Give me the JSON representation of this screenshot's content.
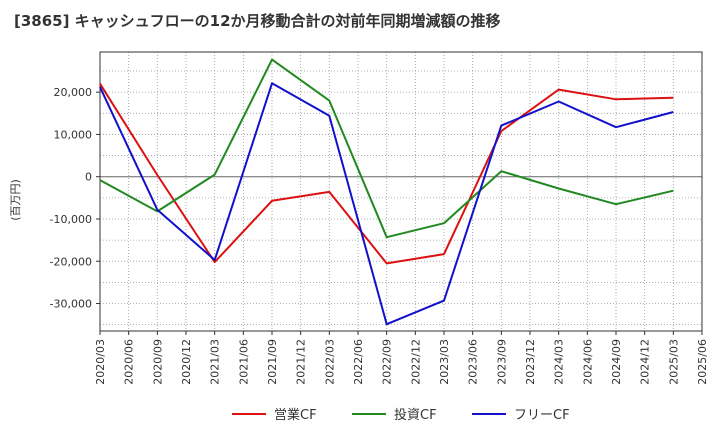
{
  "chart_data": {
    "type": "line",
    "title": "[3865]  キャッシュフローの12か月移動合計の対前年同期増減額の推移",
    "ylabel": "(百万円)",
    "x": [
      "2020/03",
      "2020/06",
      "2020/09",
      "2020/12",
      "2021/03",
      "2021/06",
      "2021/09",
      "2021/12",
      "2022/03",
      "2022/06",
      "2022/09",
      "2022/12",
      "2023/03",
      "2023/06",
      "2023/09",
      "2023/12",
      "2024/03",
      "2024/06",
      "2024/09",
      "2024/12",
      "2025/03",
      "2025/06"
    ],
    "ylim": [
      -36500,
      29500
    ],
    "yticks": [
      20000,
      10000,
      0,
      -10000,
      -20000,
      -30000
    ],
    "ytick_labels": [
      "20,000",
      "10,000",
      "0",
      "-10,000",
      "-20,000",
      "-30,000"
    ],
    "grid": true,
    "legend_position": "bottom",
    "series": [
      {
        "name": "営業CF",
        "color": "#dd1111",
        "values": [
          22000,
          null,
          400,
          null,
          -20200,
          null,
          -5700,
          null,
          -3600,
          null,
          -20500,
          null,
          -18300,
          null,
          10800,
          null,
          20600,
          null,
          18300,
          null,
          18700,
          null
        ]
      },
      {
        "name": "投資CF",
        "color": "#228822",
        "values": [
          -800,
          null,
          -8200,
          null,
          500,
          null,
          27700,
          null,
          18000,
          null,
          -14300,
          null,
          -11000,
          null,
          1300,
          null,
          -2800,
          null,
          -6500,
          null,
          -3300,
          null
        ]
      },
      {
        "name": "フリーCF",
        "color": "#1111cc",
        "values": [
          21200,
          null,
          -7800,
          null,
          -19700,
          null,
          22100,
          null,
          14400,
          null,
          -34900,
          null,
          -29300,
          null,
          12100,
          null,
          17800,
          null,
          11700,
          null,
          15300,
          null
        ]
      }
    ]
  }
}
